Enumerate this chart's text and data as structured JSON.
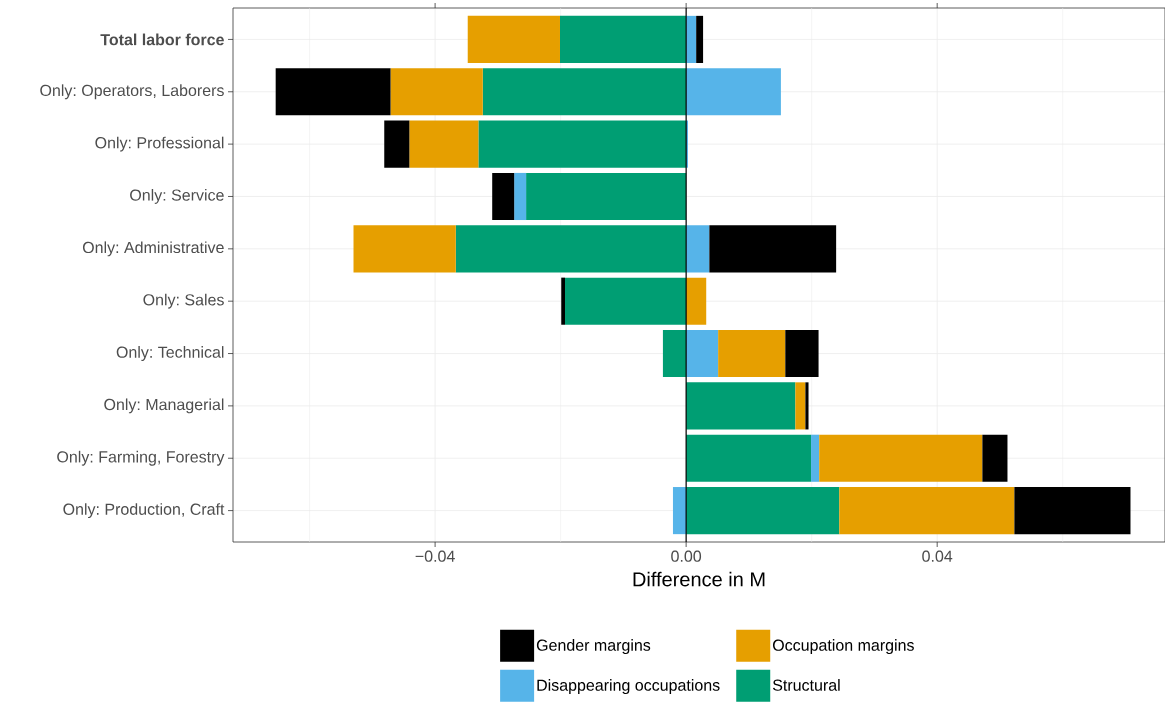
{
  "chart_data": {
    "type": "bar",
    "orientation": "horizontal",
    "stacked": true,
    "categories": [
      "**Total labor force**",
      "Only: Operators, Laborers",
      "Only: Professional",
      "Only: Service",
      "Only: Administrative",
      "Only: Sales",
      "Only: Technical",
      "Only: Managerial",
      "Only: Farming, Forestry",
      "Only: Production, Craft"
    ],
    "series": [
      {
        "name": "Structural",
        "color": "#009e73",
        "values": [
          -0.0201,
          -0.0324,
          -0.0331,
          -0.0255,
          -0.0367,
          -0.0193,
          -0.0037,
          0.0174,
          0.0199,
          0.0244
        ]
      },
      {
        "name": "Disappearing occupations",
        "color": "#56b4e9",
        "values": [
          0.0016,
          0.0151,
          0.0003,
          -0.0019,
          0.0037,
          0,
          0.0051,
          0,
          0.0013,
          -0.0021
        ]
      },
      {
        "name": "Occupation margins",
        "color": "#e69f00",
        "values": [
          -0.0147,
          -0.0147,
          -0.011,
          0,
          -0.0163,
          0.0032,
          0.0107,
          0.0016,
          0.026,
          0.0279
        ]
      },
      {
        "name": "Gender margins",
        "color": "#000000",
        "values": [
          0.0011,
          -0.0183,
          -0.004,
          -0.0035,
          0.0202,
          -0.0006,
          0.0053,
          0.0005,
          0.004,
          0.0185
        ]
      }
    ],
    "xlabel": "Difference in M",
    "xlim": [
      -0.0722,
      0.0763
    ],
    "xticks": [
      {
        "value": -0.06,
        "label": null
      },
      {
        "value": -0.04,
        "label": "−0.04"
      },
      {
        "value": -0.02,
        "label": null
      },
      {
        "value": 0,
        "label": "0.00"
      },
      {
        "value": 0.02,
        "label": null
      },
      {
        "value": 0.04,
        "label": "0.04"
      },
      {
        "value": 0.06,
        "label": null
      }
    ],
    "ref_lines": [
      {
        "axis": "x",
        "value": 0,
        "color": "#000000"
      }
    ],
    "grid": true,
    "legend": "bottom"
  }
}
